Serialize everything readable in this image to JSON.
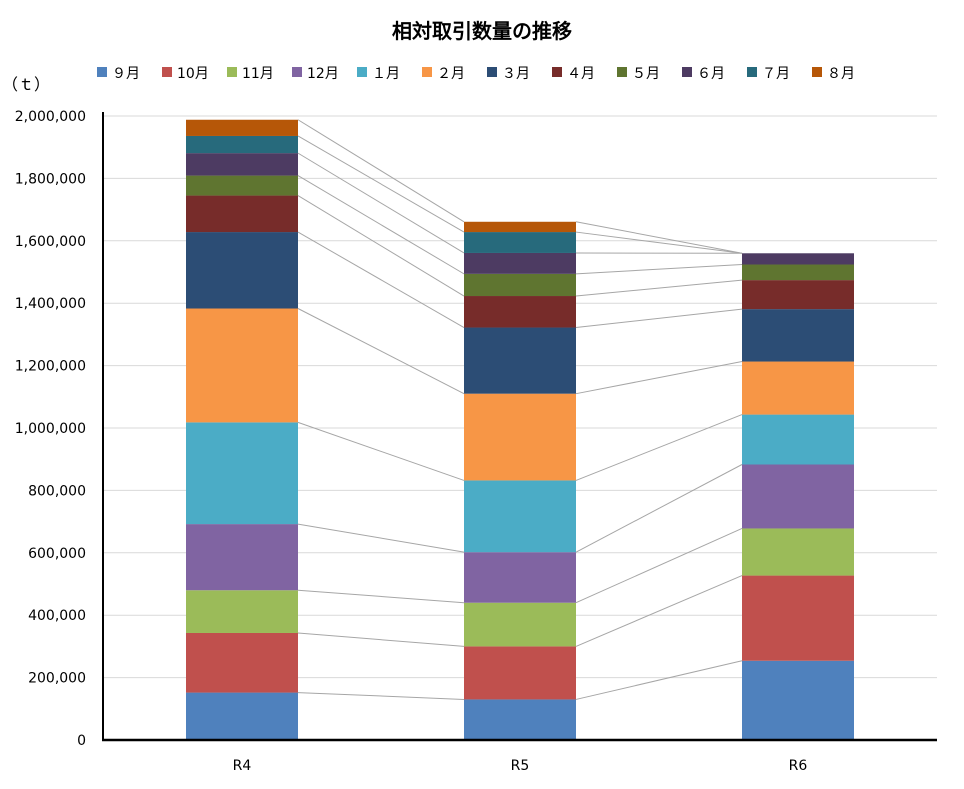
{
  "chart_data": {
    "type": "bar",
    "stacked": true,
    "title": "相対取引数量の推移",
    "ylabel": "（ｔ）",
    "xlabel": "",
    "categories": [
      "R4",
      "R5",
      "R6"
    ],
    "ylim": [
      0,
      2000000
    ],
    "yticks": [
      0,
      200000,
      400000,
      600000,
      800000,
      1000000,
      1200000,
      1400000,
      1600000,
      1800000,
      2000000
    ],
    "grid": true,
    "legend_position": "top",
    "connector_lines": true,
    "series": [
      {
        "name": "９月",
        "color": "#4F81BD",
        "values": [
          152000,
          130000,
          254000
        ]
      },
      {
        "name": "10月",
        "color": "#C0504D",
        "values": [
          191000,
          170000,
          273000
        ]
      },
      {
        "name": "11月",
        "color": "#9BBB59",
        "values": [
          137000,
          140000,
          151000
        ]
      },
      {
        "name": "12月",
        "color": "#8064A2",
        "values": [
          212000,
          162000,
          205000
        ]
      },
      {
        "name": "１月",
        "color": "#4BACC6",
        "values": [
          326000,
          230000,
          160000
        ]
      },
      {
        "name": "２月",
        "color": "#F79646",
        "values": [
          365000,
          278000,
          170000
        ]
      },
      {
        "name": "３月",
        "color": "#2C4D75",
        "values": [
          245000,
          212000,
          168000
        ]
      },
      {
        "name": "４月",
        "color": "#772C2A",
        "values": [
          117000,
          101000,
          93000
        ]
      },
      {
        "name": "５月",
        "color": "#5F7530",
        "values": [
          64000,
          71000,
          50000
        ]
      },
      {
        "name": "６月",
        "color": "#4D3B62",
        "values": [
          72000,
          67000,
          36000
        ]
      },
      {
        "name": "７月",
        "color": "#276A7C",
        "values": [
          55000,
          67000,
          0
        ]
      },
      {
        "name": "８月",
        "color": "#B65708",
        "values": [
          52000,
          33000,
          0
        ]
      }
    ]
  }
}
